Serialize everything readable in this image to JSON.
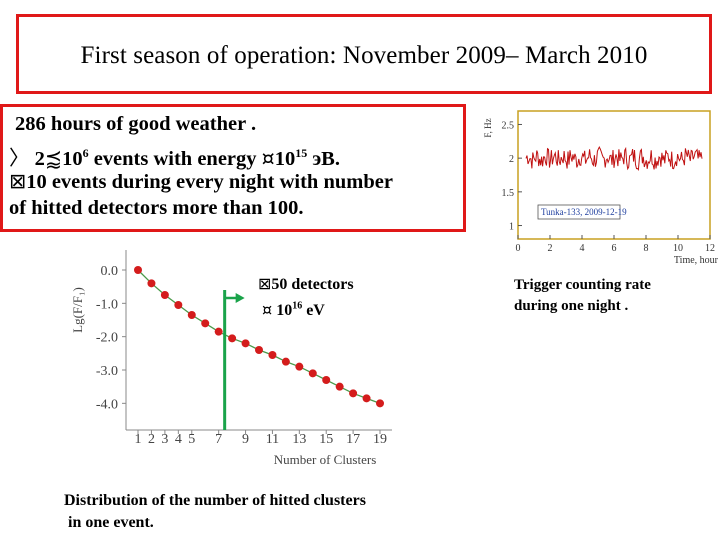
{
  "title": "First season  of operation: November 2009– March 2010",
  "info": {
    "line1": "286 hours of good weather .",
    "line2_glyph": "〉",
    "line2_pre": " 2",
    "line2_x": "⪷",
    "line2_mid": "10",
    "line2_sup": "6",
    "line2_post": "  events with energy  ",
    "line2_sym": "¤",
    "line2_e": "10",
    "line2_esup": "15",
    "line2_unit": " эВ.",
    "line3_glyph": "⊠",
    "line3": "10 events during every night with number",
    "line4": "of  hitted detectors more than 100."
  },
  "note": {
    "glyph": "⊠",
    "line1": "50 detectors",
    "sym": "¤",
    "line2_base": " 10",
    "line2_sup": "16",
    "line2_post": " eV"
  },
  "caption_left": {
    "line1": "Distribution of  the number of hitted clusters",
    "line2": "in one event."
  },
  "caption_right": {
    "line1": "Trigger counting rate",
    "line2": "during one night ."
  },
  "chart_data": [
    {
      "type": "scatter",
      "title": "",
      "xlabel": "Number of Clusters",
      "ylabel": "Lg(F/F₁)",
      "x": [
        1,
        2,
        3,
        4,
        5,
        6,
        7,
        8,
        9,
        10,
        11,
        12,
        13,
        14,
        15,
        16,
        17,
        18,
        19
      ],
      "y": [
        0.0,
        -0.4,
        -0.75,
        -1.05,
        -1.35,
        -1.6,
        -1.85,
        -2.05,
        -2.2,
        -2.4,
        -2.55,
        -2.75,
        -2.9,
        -3.1,
        -3.3,
        -3.5,
        -3.7,
        -3.85,
        -4.0
      ],
      "xticks": [
        "1",
        "2",
        "3",
        "4",
        "5",
        "7",
        "9",
        "11",
        "13",
        "15",
        "17",
        "19"
      ],
      "yticks": [
        "0.0",
        "-1.0",
        "-2.0",
        "-3.0",
        "-4.0"
      ],
      "xlim": [
        1,
        19
      ],
      "ylim": [
        -4.5,
        0.3
      ],
      "marker_color": "#d41c1c",
      "line_color": "#4a9a4a",
      "annotation_x": 7,
      "annotation_color": "#1aa34a"
    },
    {
      "type": "line",
      "title": "",
      "xlabel": "Time, hour",
      "ylabel": "F, Hz",
      "legend": "Tunka-133, 2009-12-19",
      "x_range": [
        0.5,
        11.5
      ],
      "y_mean": 2.0,
      "y_noise": 0.15,
      "xticks": [
        "0",
        "2",
        "4",
        "6",
        "8",
        "10",
        "12"
      ],
      "yticks": [
        "1",
        "1.5",
        "2",
        "2.5"
      ],
      "xlim": [
        0,
        12
      ],
      "ylim": [
        0.8,
        2.7
      ],
      "line_color": "#c01010",
      "frame_color": "#c8a020"
    }
  ]
}
